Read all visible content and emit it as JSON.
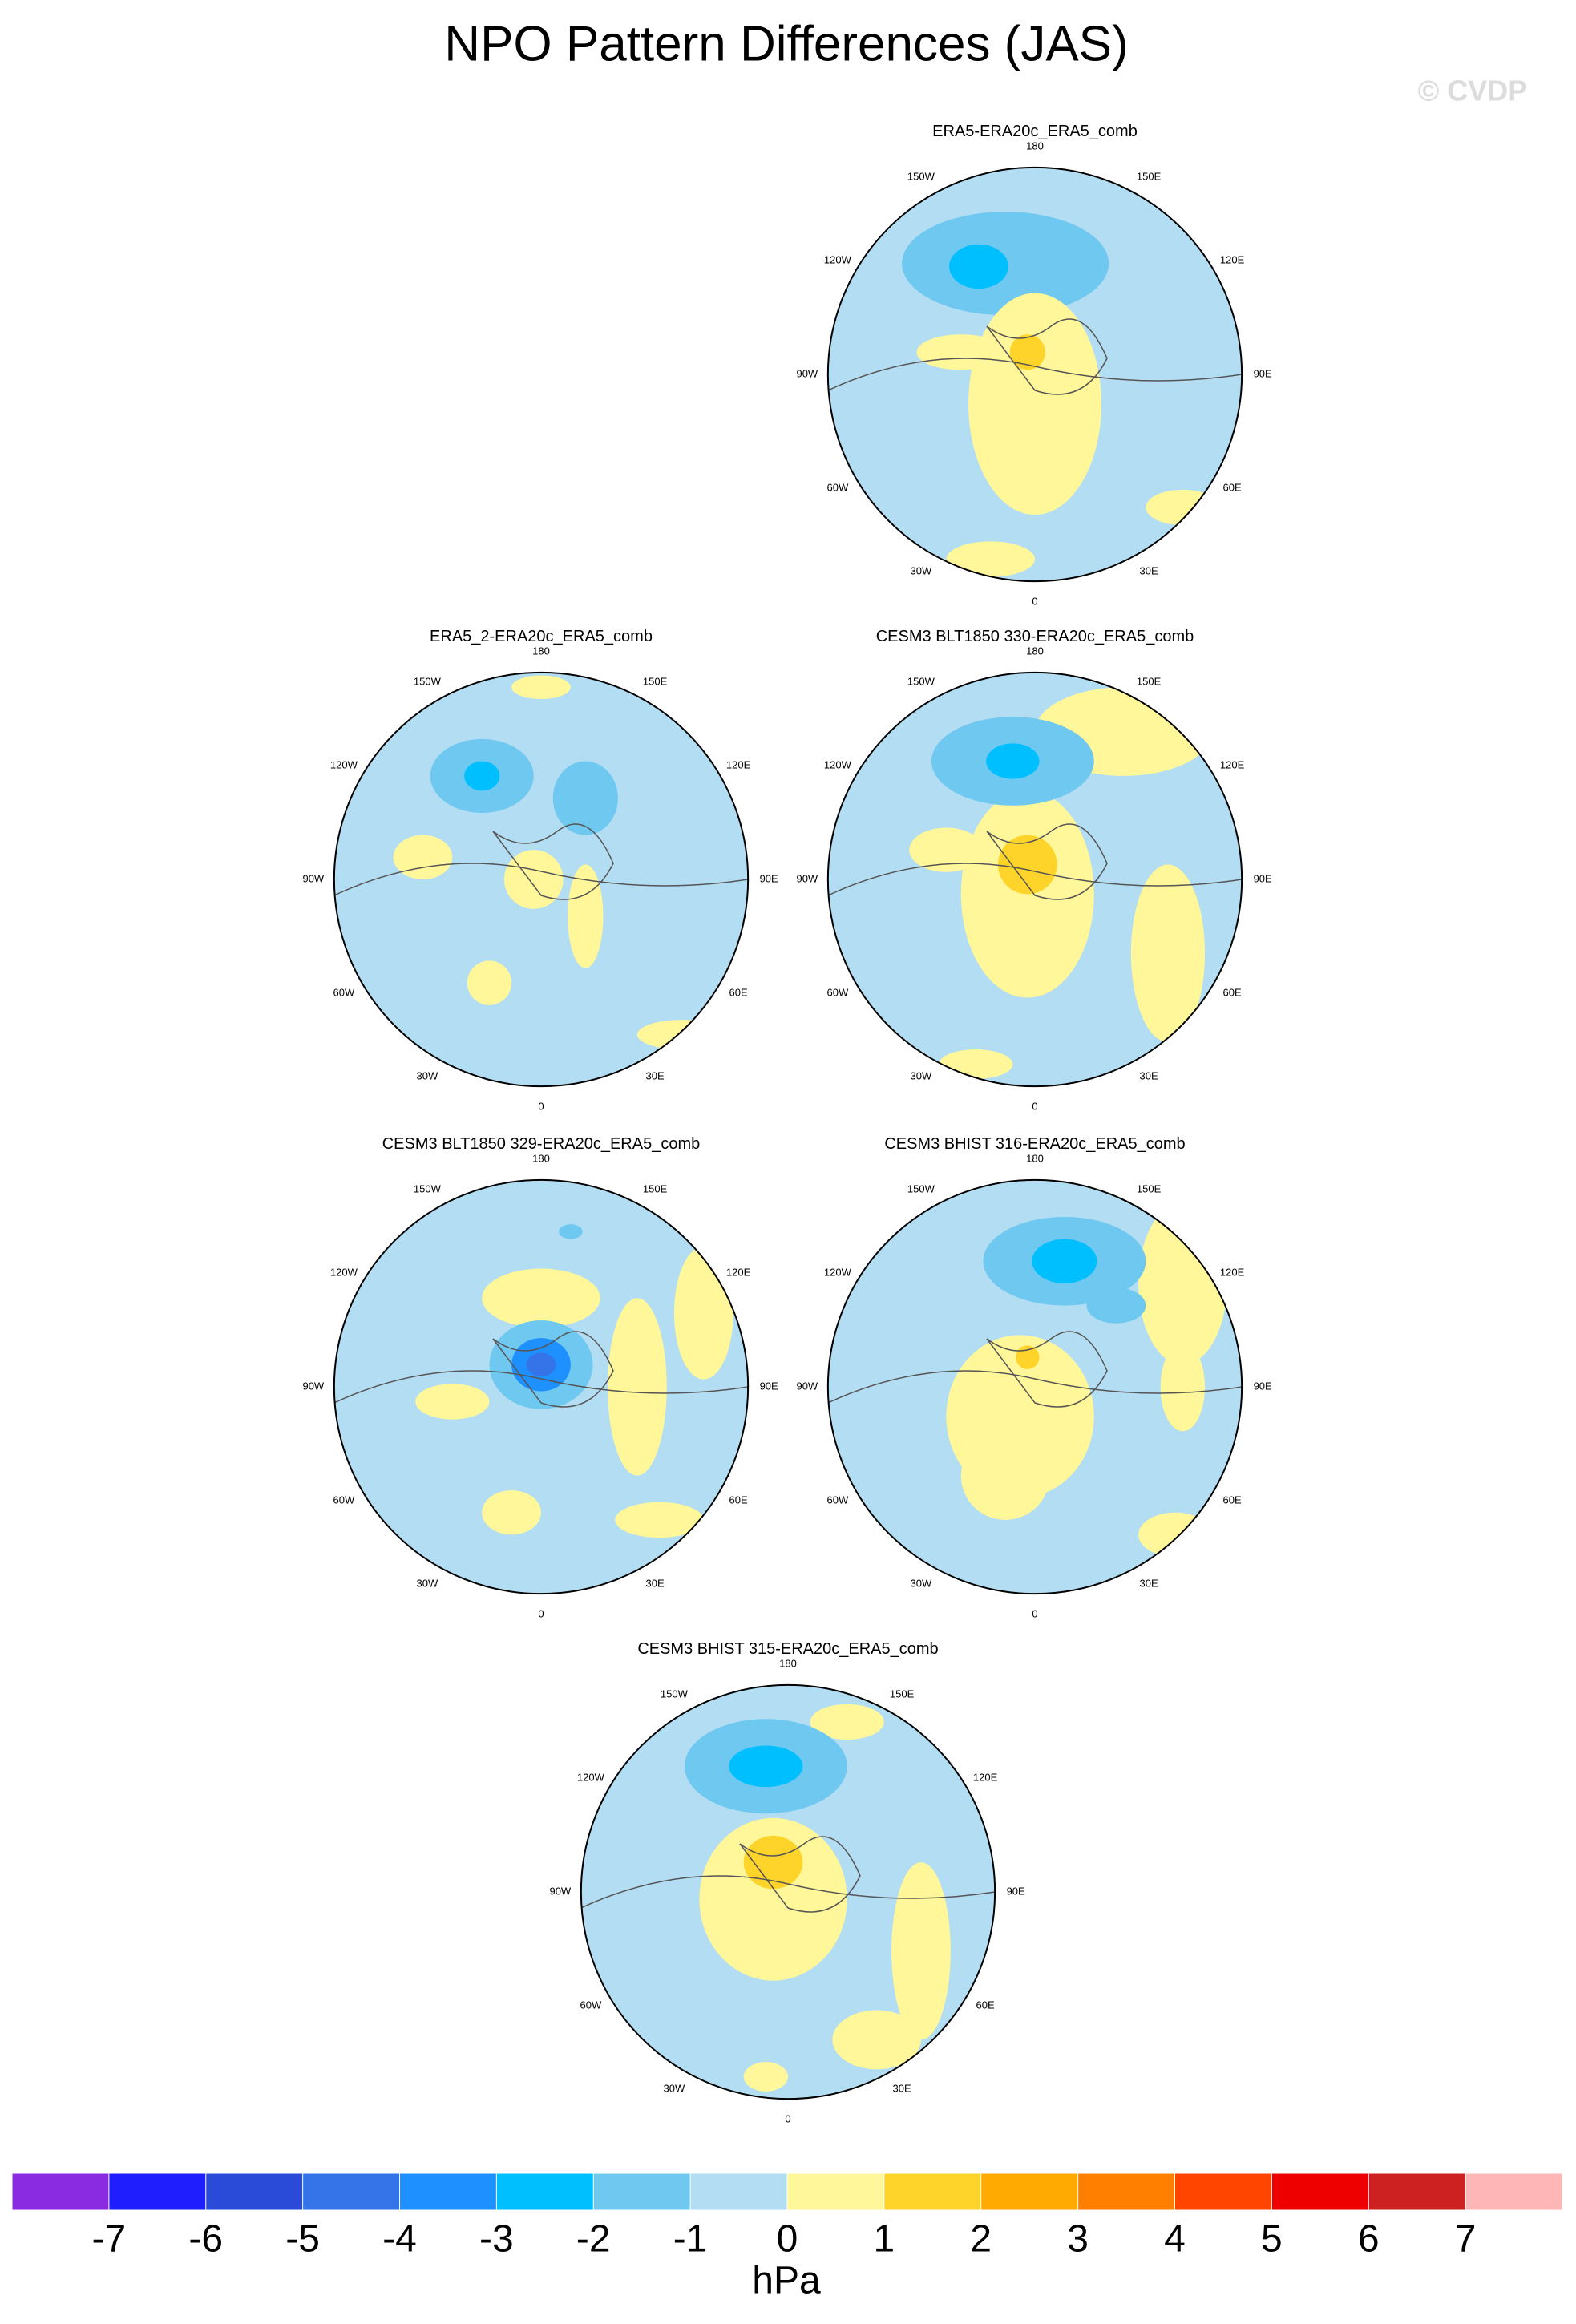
{
  "header": {
    "title": "NPO Pattern Differences (JAS)",
    "watermark": "© CVDP"
  },
  "longitude_labels": [
    "180",
    "150E",
    "120E",
    "90E",
    "60E",
    "30E",
    "0",
    "30W",
    "60W",
    "90W",
    "120W",
    "150W"
  ],
  "panels": [
    {
      "title": "ERA5-ERA20c_ERA5_comb"
    },
    {
      "title": "ERA5_2-ERA20c_ERA5_comb"
    },
    {
      "title": "CESM3 BLT1850 330-ERA20c_ERA5_comb"
    },
    {
      "title": "CESM3 BLT1850 329-ERA20c_ERA5_comb"
    },
    {
      "title": "CESM3 BHIST 316-ERA20c_ERA5_comb"
    },
    {
      "title": "CESM3 BHIST 315-ERA20c_ERA5_comb"
    }
  ],
  "colorbar": {
    "colors": [
      "#8a2be2",
      "#1e1eff",
      "#2a4bd7",
      "#3574e8",
      "#1e90ff",
      "#00bfff",
      "#6fc8f0",
      "#b3ddf2",
      "#fff799",
      "#ffd42a",
      "#ffaa00",
      "#ff7f00",
      "#ff4500",
      "#ee0000",
      "#cd2020",
      "#ffb6b6"
    ],
    "ticks": [
      -7,
      -6,
      -5,
      -4,
      -3,
      -2,
      -1,
      0,
      1,
      2,
      3,
      4,
      5,
      6,
      7
    ],
    "label": "hPa"
  }
}
